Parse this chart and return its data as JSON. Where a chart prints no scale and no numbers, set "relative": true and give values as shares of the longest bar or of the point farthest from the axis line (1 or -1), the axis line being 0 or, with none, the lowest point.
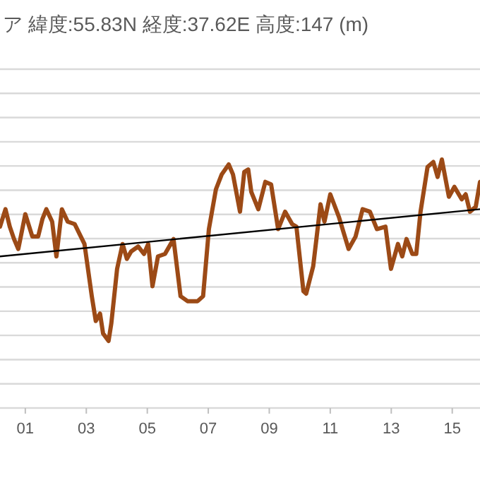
{
  "chart_data": {
    "type": "line",
    "title": "ア 緯度:55.83N 経度:37.62E 高度:147 (m)",
    "relative": true,
    "grid": "y",
    "line_style": "solid",
    "xlim": [
      0.17,
      15.91
    ],
    "xticks": [
      {
        "value": 1,
        "label": "01"
      },
      {
        "value": 3,
        "label": "03"
      },
      {
        "value": 5,
        "label": "05"
      },
      {
        "value": 7,
        "label": "07"
      },
      {
        "value": 9,
        "label": "09"
      },
      {
        "value": 11,
        "label": "11"
      },
      {
        "value": 13,
        "label": "13"
      },
      {
        "value": 15,
        "label": "15"
      }
    ],
    "series": [
      {
        "color": "#9c4a16",
        "x": [
          0.17,
          0.35,
          0.49,
          0.63,
          0.77,
          1.0,
          1.23,
          1.42,
          1.56,
          1.69,
          1.88,
          2.02,
          2.2,
          2.39,
          2.62,
          2.94,
          3.18,
          3.31,
          3.45,
          3.55,
          3.73,
          3.82,
          4.01,
          4.19,
          4.33,
          4.47,
          4.7,
          4.89,
          5.03,
          5.17,
          5.35,
          5.58,
          5.86,
          6.09,
          6.32,
          6.65,
          6.83,
          7.02,
          7.25,
          7.44,
          7.67,
          7.81,
          8.04,
          8.18,
          8.31,
          8.41,
          8.64,
          8.87,
          9.06,
          9.29,
          9.52,
          9.75,
          9.89,
          10.12,
          10.21,
          10.44,
          10.68,
          10.81,
          11.0,
          11.28,
          11.6,
          11.83,
          12.06,
          12.3,
          12.53,
          12.81,
          12.99,
          13.22,
          13.36,
          13.5,
          13.69,
          13.82,
          13.96,
          14.19,
          14.38,
          14.52,
          14.66,
          14.89,
          15.07,
          15.31,
          15.44,
          15.58,
          15.77,
          15.91
        ],
        "values": [
          0.73,
          0.8,
          0.73,
          0.68,
          0.64,
          0.78,
          0.69,
          0.69,
          0.76,
          0.8,
          0.75,
          0.61,
          0.8,
          0.75,
          0.74,
          0.66,
          0.45,
          0.35,
          0.38,
          0.3,
          0.27,
          0.34,
          0.56,
          0.66,
          0.6,
          0.63,
          0.65,
          0.62,
          0.66,
          0.49,
          0.61,
          0.62,
          0.68,
          0.45,
          0.43,
          0.43,
          0.45,
          0.72,
          0.88,
          0.94,
          0.98,
          0.94,
          0.79,
          0.95,
          0.96,
          0.87,
          0.8,
          0.91,
          0.9,
          0.72,
          0.79,
          0.74,
          0.73,
          0.47,
          0.46,
          0.57,
          0.82,
          0.75,
          0.86,
          0.77,
          0.64,
          0.69,
          0.8,
          0.79,
          0.72,
          0.73,
          0.56,
          0.66,
          0.61,
          0.68,
          0.62,
          0.62,
          0.79,
          0.97,
          0.99,
          0.93,
          1.0,
          0.85,
          0.89,
          0.84,
          0.86,
          0.79,
          0.81,
          0.91
        ]
      },
      {
        "type": "line",
        "color": "#000000",
        "x": [
          0.17,
          15.91
        ],
        "values": [
          0.61,
          0.8
        ]
      }
    ]
  }
}
